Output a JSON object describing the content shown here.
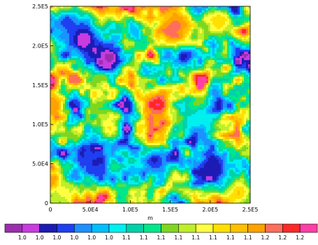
{
  "chart_data": {
    "type": "heatmap",
    "title": "",
    "xlabel": "m",
    "ylabel": "",
    "xlim": [
      0,
      250000
    ],
    "ylim": [
      0,
      250000
    ],
    "x_ticks": [
      {
        "value": 0,
        "label": "0"
      },
      {
        "value": 50000,
        "label": "5.0E4"
      },
      {
        "value": 100000,
        "label": "1.0E5"
      },
      {
        "value": 150000,
        "label": "1.5E5"
      },
      {
        "value": 200000,
        "label": "2.0E5"
      },
      {
        "value": 250000,
        "label": "2.5E5"
      }
    ],
    "y_ticks": [
      {
        "value": 0,
        "label": "0"
      },
      {
        "value": 50000,
        "label": "5.0E4"
      },
      {
        "value": 100000,
        "label": "1.0E5"
      },
      {
        "value": 150000,
        "label": "1.5E5"
      },
      {
        "value": 200000,
        "label": "2.0E5"
      },
      {
        "value": 250000,
        "label": "2.5E5"
      }
    ],
    "colorbar": {
      "colors": [
        "#9b2fae",
        "#c83ce0",
        "#1c1cb4",
        "#1f3ff0",
        "#1e90ff",
        "#00bfff",
        "#00f0f0",
        "#00d1a8",
        "#00e78a",
        "#7fd620",
        "#bfef2a",
        "#ffff40",
        "#ffe000",
        "#ffc000",
        "#ffa200",
        "#ff6e5a",
        "#ff2828",
        "#ff3fa8"
      ],
      "labels": [
        "1.0",
        "1.0",
        "1.0",
        "1.0",
        "1.0",
        "1.0",
        "1.1",
        "1.1",
        "1.1",
        "1.1",
        "1.1",
        "1.1",
        "1.1",
        "1.1",
        "1.2",
        "1.2",
        "1.2"
      ]
    },
    "field_features": [
      {
        "x": 40000,
        "y": 210000,
        "level": 0.05,
        "extent": 28000
      },
      {
        "x": 75000,
        "y": 185000,
        "level": 0.02,
        "extent": 16000
      },
      {
        "x": 20000,
        "y": 230000,
        "level": 0.18,
        "extent": 18000
      },
      {
        "x": 135000,
        "y": 125000,
        "level": 0.95,
        "extent": 20000
      },
      {
        "x": 155000,
        "y": 225000,
        "level": 0.85,
        "extent": 22000
      },
      {
        "x": 5000,
        "y": 125000,
        "level": 0.82,
        "extent": 14000
      },
      {
        "x": 210000,
        "y": 230000,
        "level": 0.72,
        "extent": 18000
      },
      {
        "x": 235000,
        "y": 15000,
        "level": 0.75,
        "extent": 20000
      },
      {
        "x": 205000,
        "y": 45000,
        "level": 0.12,
        "extent": 24000
      },
      {
        "x": 130000,
        "y": 55000,
        "level": 0.15,
        "extent": 20000
      },
      {
        "x": 55000,
        "y": 50000,
        "level": 0.16,
        "extent": 22000
      },
      {
        "x": 20000,
        "y": 15000,
        "level": 0.62,
        "extent": 16000
      },
      {
        "x": 75000,
        "y": 95000,
        "level": 0.68,
        "extent": 16000
      },
      {
        "x": 185000,
        "y": 105000,
        "level": 0.38,
        "extent": 22000
      }
    ]
  }
}
